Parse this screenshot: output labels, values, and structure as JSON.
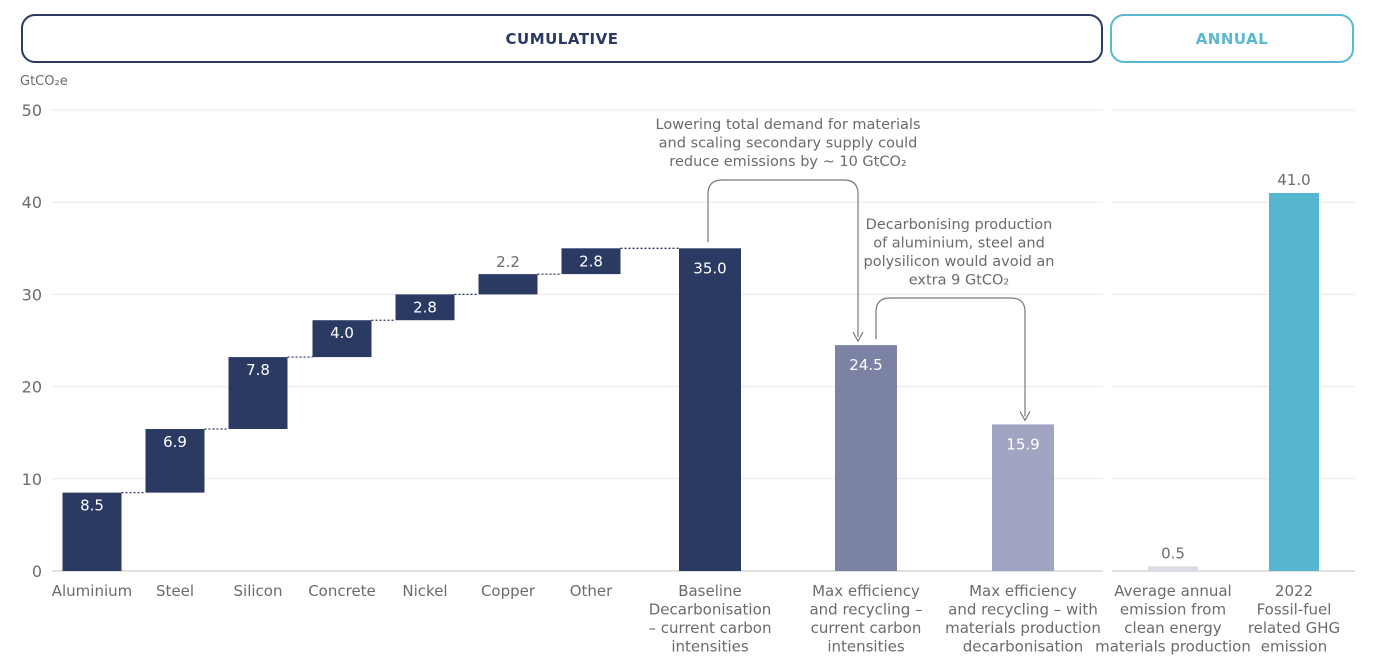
{
  "headers": {
    "cumulative": "CUMULATIVE",
    "annual": "ANNUAL"
  },
  "unit": "GtCO₂e",
  "colors": {
    "navy": "#2b3a63",
    "mid": "#7b82a3",
    "light": "#a2a5c1",
    "pale": "#d9dde3",
    "teal": "#57b6cf",
    "grid": "#e9e9e9",
    "axis_text": "#6b6b6b",
    "annotation": "#6b6b6b"
  },
  "chart_data": {
    "type": "bar",
    "subtype": "waterfall",
    "ylim": [
      0,
      50
    ],
    "yticks": [
      0,
      10,
      20,
      30,
      40,
      50
    ],
    "grid": true,
    "ylabel": "GtCO₂e",
    "cumulative": {
      "increments": [
        {
          "category": "Aluminium",
          "value": 8.5,
          "label": "8.5"
        },
        {
          "category": "Steel",
          "value": 6.9,
          "label": "6.9"
        },
        {
          "category": "Silicon",
          "value": 7.8,
          "label": "7.8"
        },
        {
          "category": "Concrete",
          "value": 4.0,
          "label": "4.0"
        },
        {
          "category": "Nickel",
          "value": 2.8,
          "label": "2.8"
        },
        {
          "category": "Copper",
          "value": 2.2,
          "label": "2.2"
        },
        {
          "category": "Other",
          "value": 2.8,
          "label": "2.8"
        }
      ],
      "totals": [
        {
          "category_lines": [
            "Baseline",
            "Decarbonisation",
            "– current carbon",
            "intensities"
          ],
          "value": 35.0,
          "label": "35.0",
          "color": "navy"
        },
        {
          "category_lines": [
            "Max efficiency",
            "and recycling –",
            "current carbon",
            "intensities"
          ],
          "value": 24.5,
          "label": "24.5",
          "color": "mid"
        },
        {
          "category_lines": [
            "Max efficiency",
            "and recycling – with",
            "materials production",
            "decarbonisation"
          ],
          "value": 15.9,
          "label": "15.9",
          "color": "light"
        }
      ]
    },
    "annual": [
      {
        "category_lines": [
          "Average annual",
          "emission from",
          "clean energy",
          "materials production"
        ],
        "value": 0.5,
        "label": "0.5",
        "color": "pale"
      },
      {
        "category_lines": [
          "2022",
          "Fossil-fuel",
          "related GHG",
          "emission"
        ],
        "value": 41.0,
        "label": "41.0",
        "color": "teal"
      }
    ],
    "annotations": [
      {
        "lines": [
          "Lowering total demand for materials",
          "and scaling secondary supply could",
          "reduce emissions by ~ 10 GtCO₂"
        ]
      },
      {
        "lines": [
          "Decarbonising production",
          "of aluminium, steel and",
          "polysilicon would avoid an",
          "extra 9 GtCO₂"
        ]
      }
    ]
  }
}
